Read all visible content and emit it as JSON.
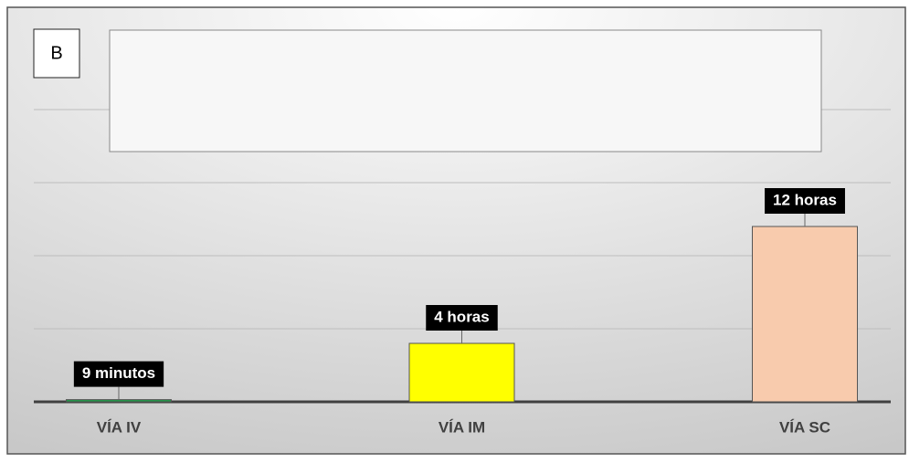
{
  "chart_data": {
    "type": "bar",
    "panel_label": "B",
    "categories": [
      "VÍA IV",
      "VÍA IM",
      "VÍA SC"
    ],
    "values": [
      0.15,
      4,
      12
    ],
    "value_labels": [
      "9 minutos",
      "4 horas",
      "12 horas"
    ],
    "colors": [
      "#1e9c48",
      "#ffff00",
      "#f8cbad"
    ],
    "ylim": [
      0,
      20
    ],
    "yticks": [
      0,
      5,
      10,
      15,
      20
    ],
    "grid": true
  }
}
